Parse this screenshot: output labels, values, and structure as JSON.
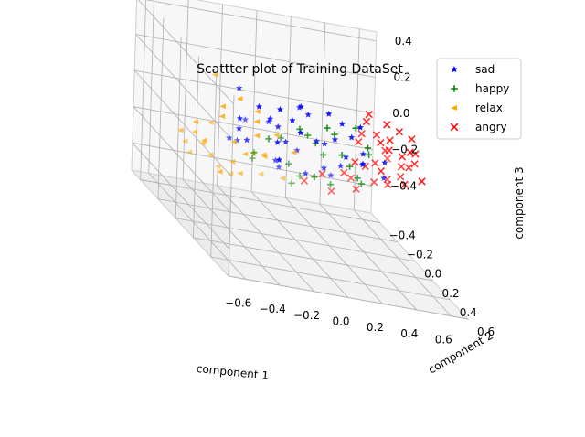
{
  "chart_data": {
    "type": "scatter",
    "projection": "3d",
    "title": "Scattter plot of Training DataSet",
    "xlabel": "component 1",
    "ylabel": "component 2",
    "zlabel": "component 3",
    "xlim": [
      -0.7,
      0.7
    ],
    "ylim": [
      -0.5,
      0.6
    ],
    "zlim": [
      -0.55,
      0.45
    ],
    "xticks": [
      "−0.6",
      "−0.4",
      "−0.2",
      "0.0",
      "0.2",
      "0.4",
      "0.6"
    ],
    "yticks": [
      "−0.4",
      "−0.2",
      "0.0",
      "0.2",
      "0.4",
      "0.6"
    ],
    "zticks": [
      "−0.4",
      "−0.2",
      "0.0",
      "0.2",
      "0.4"
    ],
    "grid": true,
    "legend": "top-right",
    "series": [
      {
        "name": "sad",
        "marker": "star",
        "color": "#0000ff",
        "points": [
          [
            -0.42,
            0.35,
            0.3
          ],
          [
            -0.35,
            0.45,
            0.35
          ],
          [
            -0.25,
            0.4,
            0.28
          ],
          [
            -0.15,
            0.3,
            0.32
          ],
          [
            -0.05,
            0.42,
            0.36
          ],
          [
            0.05,
            0.38,
            0.3
          ],
          [
            0.12,
            0.45,
            0.33
          ],
          [
            -0.4,
            0.1,
            0.05
          ],
          [
            -0.3,
            0.0,
            -0.05
          ],
          [
            -0.2,
            0.15,
            0.12
          ],
          [
            -0.1,
            0.05,
            0.0
          ],
          [
            0.0,
            0.2,
            0.1
          ],
          [
            0.1,
            0.1,
            0.05
          ],
          [
            0.2,
            0.15,
            0.02
          ],
          [
            -0.35,
            -0.1,
            -0.1
          ],
          [
            -0.25,
            -0.2,
            -0.15
          ],
          [
            -0.05,
            -0.15,
            -0.2
          ],
          [
            0.1,
            -0.1,
            -0.22
          ],
          [
            0.25,
            0.0,
            -0.1
          ],
          [
            0.35,
            0.05,
            -0.05
          ],
          [
            0.3,
            -0.2,
            -0.25
          ],
          [
            0.15,
            0.3,
            0.2
          ],
          [
            -0.3,
            0.25,
            0.2
          ],
          [
            -0.15,
            -0.05,
            0.05
          ],
          [
            0.05,
            -0.3,
            -0.3
          ],
          [
            0.45,
            0.1,
            -0.08
          ],
          [
            0.4,
            0.2,
            0.05
          ],
          [
            -0.45,
            0.2,
            0.15
          ],
          [
            -0.2,
            0.4,
            0.22
          ],
          [
            0.0,
            0.0,
            0.18
          ],
          [
            -0.38,
            0.05,
            0.25
          ],
          [
            -0.28,
            0.3,
            0.1
          ],
          [
            -0.08,
            0.25,
            0.26
          ],
          [
            0.08,
            0.25,
            0.15
          ],
          [
            0.22,
            0.3,
            0.12
          ],
          [
            -0.18,
            -0.25,
            -0.05
          ],
          [
            0.02,
            -0.05,
            -0.08
          ],
          [
            0.18,
            -0.05,
            -0.15
          ],
          [
            0.3,
            0.15,
            0.0
          ],
          [
            -0.32,
            0.4,
            0.05
          ]
        ]
      },
      {
        "name": "happy",
        "marker": "plus",
        "color": "#008000",
        "points": [
          [
            -0.1,
            0.2,
            0.15
          ],
          [
            0.0,
            0.1,
            0.08
          ],
          [
            0.1,
            0.0,
            0.0
          ],
          [
            0.2,
            -0.1,
            -0.1
          ],
          [
            0.05,
            0.3,
            0.2
          ],
          [
            -0.05,
            -0.1,
            -0.05
          ],
          [
            0.15,
            0.2,
            0.05
          ],
          [
            0.25,
            0.1,
            -0.05
          ],
          [
            0.3,
            -0.2,
            -0.3
          ],
          [
            0.2,
            -0.35,
            -0.35
          ],
          [
            -0.15,
            -0.2,
            -0.2
          ],
          [
            0.08,
            -0.25,
            -0.25
          ],
          [
            0.35,
            0.0,
            -0.15
          ],
          [
            -0.02,
            0.35,
            0.25
          ],
          [
            0.12,
            0.4,
            0.3
          ],
          [
            0.28,
            0.25,
            0.1
          ],
          [
            -0.2,
            0.05,
            0.0
          ],
          [
            0.4,
            -0.05,
            -0.2
          ],
          [
            0.18,
            -0.4,
            -0.42
          ],
          [
            -0.08,
            -0.35,
            -0.3
          ],
          [
            0.02,
            0.15,
            -0.12
          ],
          [
            0.22,
            0.35,
            0.18
          ]
        ]
      },
      {
        "name": "relax",
        "marker": "triangle-left",
        "color": "#ffa500",
        "points": [
          [
            -0.6,
            0.0,
            0.0
          ],
          [
            -0.55,
            -0.1,
            -0.1
          ],
          [
            -0.5,
            0.1,
            0.1
          ],
          [
            -0.45,
            -0.2,
            -0.2
          ],
          [
            -0.4,
            0.05,
            -0.05
          ],
          [
            -0.35,
            -0.3,
            -0.3
          ],
          [
            -0.3,
            -0.15,
            -0.25
          ],
          [
            -0.25,
            -0.4,
            -0.4
          ],
          [
            -0.2,
            -0.25,
            -0.35
          ],
          [
            -0.15,
            -0.45,
            -0.45
          ],
          [
            -0.55,
            0.2,
            0.2
          ],
          [
            -0.48,
            0.25,
            0.28
          ],
          [
            -0.4,
            0.3,
            0.25
          ],
          [
            -0.58,
            -0.2,
            -0.15
          ],
          [
            -0.5,
            -0.3,
            -0.25
          ],
          [
            -0.42,
            -0.4,
            -0.35
          ],
          [
            -0.32,
            0.15,
            0.05
          ],
          [
            -0.22,
            0.05,
            -0.1
          ],
          [
            -0.1,
            -0.3,
            -0.25
          ],
          [
            0.0,
            -0.4,
            -0.4
          ],
          [
            0.1,
            -0.35,
            -0.38
          ],
          [
            -0.35,
            0.2,
            0.15
          ],
          [
            -0.45,
            0.0,
            -0.25
          ],
          [
            -0.28,
            -0.05,
            -0.15
          ],
          [
            -0.18,
            0.1,
            0.05
          ],
          [
            -0.05,
            0.05,
            -0.05
          ],
          [
            -0.6,
            0.1,
            -0.05
          ],
          [
            -0.52,
            0.05,
            0.3
          ],
          [
            -0.38,
            -0.25,
            -0.1
          ],
          [
            -0.12,
            -0.15,
            -0.18
          ]
        ]
      },
      {
        "name": "angry",
        "marker": "x",
        "color": "#ff0000",
        "points": [
          [
            0.3,
            0.2,
            0.3
          ],
          [
            0.4,
            0.25,
            0.2
          ],
          [
            0.5,
            0.2,
            0.1
          ],
          [
            0.55,
            0.1,
            0.0
          ],
          [
            0.6,
            0.0,
            -0.1
          ],
          [
            0.5,
            -0.1,
            -0.2
          ],
          [
            0.45,
            -0.2,
            -0.3
          ],
          [
            0.4,
            0.1,
            0.15
          ],
          [
            0.35,
            0.0,
            0.05
          ],
          [
            0.45,
            0.0,
            -0.05
          ],
          [
            0.55,
            -0.05,
            -0.15
          ],
          [
            0.6,
            0.15,
            0.05
          ],
          [
            0.5,
            0.3,
            0.25
          ],
          [
            0.4,
            0.35,
            0.3
          ],
          [
            0.3,
            0.4,
            0.35
          ],
          [
            0.2,
            -0.3,
            -0.35
          ],
          [
            0.25,
            -0.2,
            -0.25
          ],
          [
            0.35,
            -0.15,
            -0.2
          ],
          [
            0.45,
            0.15,
            0.1
          ],
          [
            0.52,
            0.2,
            -0.05
          ],
          [
            0.58,
            -0.1,
            -0.2
          ],
          [
            0.42,
            -0.05,
            -0.1
          ],
          [
            0.32,
            0.3,
            0.2
          ],
          [
            0.48,
            0.05,
            0.05
          ],
          [
            0.38,
            0.2,
            0.0
          ],
          [
            0.28,
            0.1,
            -0.02
          ],
          [
            0.55,
            0.25,
            0.15
          ],
          [
            0.62,
            0.05,
            -0.02
          ],
          [
            0.46,
            -0.28,
            -0.28
          ],
          [
            0.36,
            -0.3,
            -0.38
          ],
          [
            0.26,
            0.25,
            0.28
          ],
          [
            0.6,
            -0.15,
            -0.08
          ],
          [
            0.44,
            0.4,
            0.22
          ],
          [
            0.34,
            0.05,
            0.12
          ],
          [
            0.54,
            0.35,
            0.05
          ]
        ]
      }
    ]
  }
}
